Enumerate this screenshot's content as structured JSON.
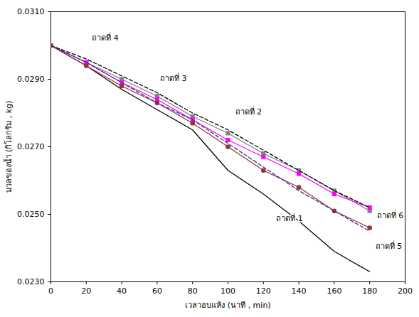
{
  "chart_data": {
    "type": "line",
    "x_label": "เวลาอบแห้ง (นาที , min)",
    "y_label": "มวลของน้ำ (กิโลกรัม , kg)",
    "x": [
      0,
      20,
      40,
      60,
      80,
      100,
      120,
      140,
      160,
      180
    ],
    "series": [
      {
        "name": "ถาดที่ 1",
        "color": "#000000",
        "marker": "none",
        "line_style": "solid",
        "values": [
          0.03,
          0.0294,
          0.0287,
          0.0281,
          0.0275,
          0.0263,
          0.0256,
          0.0248,
          0.0239,
          0.0233
        ]
      },
      {
        "name": "ถาดที่ 2",
        "color": "#808080",
        "marker": "square",
        "line_style": "solid",
        "values": [
          0.03,
          0.0295,
          0.029,
          0.0285,
          0.0279,
          0.0274,
          0.0268,
          0.0263,
          0.0257,
          0.0251
        ]
      },
      {
        "name": "ถาดที่ 3",
        "color": "#ff00ff",
        "marker": "square",
        "line_style": "solid",
        "values": [
          0.03,
          0.0295,
          0.0289,
          0.0284,
          0.0278,
          0.0272,
          0.0267,
          0.0262,
          0.0256,
          0.0252
        ]
      },
      {
        "name": "ถาดที่ 4",
        "color": "#000000",
        "marker": "none",
        "line_style": "dashed",
        "values": [
          0.03,
          0.0296,
          0.0291,
          0.0286,
          0.028,
          0.0275,
          0.0269,
          0.0263,
          0.0257,
          0.0252
        ]
      },
      {
        "name": "ถาดที่ 5",
        "color": "#993333",
        "marker": "circle",
        "line_style": "solid",
        "values": [
          0.03,
          0.0294,
          0.0288,
          0.0283,
          0.0277,
          0.027,
          0.0263,
          0.0258,
          0.0251,
          0.0246
        ]
      },
      {
        "name": "ถาดที่ 6",
        "color": "#333399",
        "marker": "none",
        "line_style": "dashed",
        "values": [
          0.03,
          0.0295,
          0.0289,
          0.0283,
          0.0278,
          0.0271,
          0.0264,
          0.0257,
          0.0251,
          0.0245
        ]
      }
    ],
    "xlim": [
      0,
      200
    ],
    "xticks": [
      0,
      20,
      40,
      60,
      80,
      100,
      120,
      140,
      160,
      180,
      200
    ],
    "ylim": [
      0.023,
      0.031
    ],
    "yticks": [
      {
        "value": 0.023,
        "label": "0.0230"
      },
      {
        "value": 0.025,
        "label": "0.0250"
      },
      {
        "value": 0.027,
        "label": "0.0270"
      },
      {
        "value": 0.029,
        "label": "0.0290"
      },
      {
        "value": 0.031,
        "label": "0.0310"
      }
    ],
    "grid": false
  }
}
